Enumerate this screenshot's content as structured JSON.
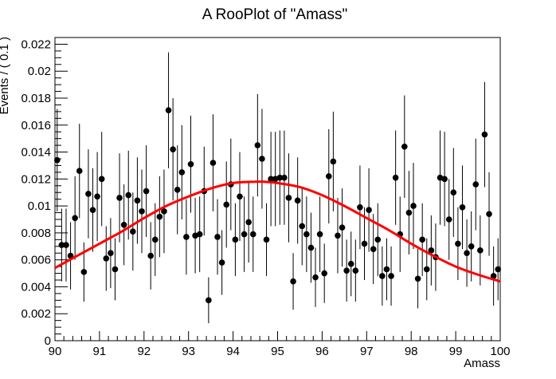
{
  "chart_data": {
    "type": "scatter",
    "title": "A RooPlot of \"Amass\"",
    "xlabel": "Amass",
    "ylabel": "Events / ( 0.1 )",
    "xlim": [
      90,
      100
    ],
    "ylim": [
      0,
      0.0225
    ],
    "grid": false,
    "legend": "none",
    "x_ticks": [
      "90",
      "91",
      "92",
      "93",
      "94",
      "95",
      "96",
      "97",
      "98",
      "99",
      "100"
    ],
    "y_ticks": [
      "0",
      "0.002",
      "0.004",
      "0.006",
      "0.008",
      "0.01",
      "0.012",
      "0.014",
      "0.016",
      "0.018",
      "0.02",
      "0.022"
    ],
    "series": [
      {
        "type": "points-with-errors",
        "color": "#000000",
        "x": [
          90.05,
          90.15,
          90.25,
          90.35,
          90.45,
          90.55,
          90.65,
          90.75,
          90.85,
          90.95,
          91.05,
          91.15,
          91.25,
          91.35,
          91.45,
          91.55,
          91.65,
          91.75,
          91.85,
          91.95,
          92.05,
          92.15,
          92.25,
          92.35,
          92.45,
          92.55,
          92.65,
          92.75,
          92.85,
          92.95,
          93.05,
          93.15,
          93.25,
          93.35,
          93.45,
          93.55,
          93.65,
          93.75,
          93.85,
          93.95,
          94.05,
          94.15,
          94.25,
          94.35,
          94.45,
          94.55,
          94.65,
          94.75,
          94.85,
          94.95,
          95.05,
          95.15,
          95.25,
          95.35,
          95.45,
          95.55,
          95.65,
          95.75,
          95.85,
          95.95,
          96.05,
          96.15,
          96.25,
          96.35,
          96.45,
          96.55,
          96.65,
          96.75,
          96.85,
          96.95,
          97.05,
          97.15,
          97.25,
          97.35,
          97.45,
          97.55,
          97.65,
          97.75,
          97.85,
          97.95,
          98.05,
          98.15,
          98.25,
          98.35,
          98.45,
          98.55,
          98.65,
          98.75,
          98.85,
          98.95,
          99.05,
          99.15,
          99.25,
          99.35,
          99.45,
          99.55,
          99.65,
          99.75,
          99.85,
          99.95
        ],
        "y": [
          0.0134,
          0.0071,
          0.0071,
          0.0063,
          0.0091,
          0.0126,
          0.0051,
          0.0109,
          0.0097,
          0.0107,
          0.012,
          0.0061,
          0.0065,
          0.0053,
          0.0106,
          0.0086,
          0.0108,
          0.0081,
          0.0104,
          0.0096,
          0.0111,
          0.0063,
          0.0075,
          0.0092,
          0.0096,
          0.0171,
          0.0142,
          0.0112,
          0.0125,
          0.0077,
          0.0131,
          0.0078,
          0.0079,
          0.0111,
          0.003,
          0.0132,
          0.0077,
          0.0058,
          0.0101,
          0.0116,
          0.0075,
          0.0107,
          0.0079,
          0.0088,
          0.0079,
          0.0145,
          0.0135,
          0.0075,
          0.012,
          0.012,
          0.0121,
          0.0121,
          0.0106,
          0.0044,
          0.0104,
          0.0085,
          0.0079,
          0.0069,
          0.0047,
          0.0079,
          0.005,
          0.0122,
          0.0133,
          0.0078,
          0.0084,
          0.0052,
          0.0057,
          0.0052,
          0.0099,
          0.0072,
          0.0097,
          0.0068,
          0.0075,
          0.0048,
          0.0053,
          0.0048,
          0.0121,
          0.0079,
          0.0144,
          0.0095,
          0.01,
          0.0046,
          0.0075,
          0.0053,
          0.0067,
          0.0062,
          0.0121,
          0.012,
          0.009,
          0.011,
          0.0072,
          0.0099,
          0.0065,
          0.007,
          0.0116,
          0.0067,
          0.0153,
          0.0094,
          0.0048,
          0.0053
        ],
        "yerr": [
          0.0038,
          0.0027,
          0.0027,
          0.0025,
          0.0031,
          0.0035,
          0.0022,
          0.0033,
          0.0031,
          0.0033,
          0.0035,
          0.0024,
          0.0026,
          0.0023,
          0.0033,
          0.003,
          0.0033,
          0.0029,
          0.0032,
          0.0031,
          0.0034,
          0.0025,
          0.0027,
          0.003,
          0.0031,
          0.0043,
          0.0038,
          0.0033,
          0.0035,
          0.0028,
          0.0036,
          0.0028,
          0.0028,
          0.0033,
          0.0017,
          0.0036,
          0.0028,
          0.0024,
          0.0032,
          0.0034,
          0.0027,
          0.0033,
          0.0028,
          0.003,
          0.0028,
          0.0038,
          0.0037,
          0.0027,
          0.0035,
          0.0035,
          0.0035,
          0.0035,
          0.0033,
          0.0021,
          0.0032,
          0.0029,
          0.0028,
          0.0026,
          0.0022,
          0.0028,
          0.0022,
          0.0035,
          0.0037,
          0.0028,
          0.0029,
          0.0023,
          0.0024,
          0.0023,
          0.0031,
          0.0027,
          0.0031,
          0.0026,
          0.0027,
          0.0022,
          0.0023,
          0.0022,
          0.0035,
          0.0028,
          0.0038,
          0.0031,
          0.0032,
          0.0022,
          0.0027,
          0.0023,
          0.0026,
          0.0025,
          0.0035,
          0.0035,
          0.003,
          0.0033,
          0.0027,
          0.0031,
          0.0025,
          0.0026,
          0.0034,
          0.0026,
          0.0039,
          0.0031,
          0.0022,
          0.0023
        ]
      },
      {
        "type": "curve",
        "color": "#ff0000",
        "x": [
          90,
          90.5,
          91,
          91.5,
          92,
          92.5,
          93,
          93.5,
          94,
          94.5,
          94.7,
          95,
          95.5,
          96,
          96.5,
          97,
          97.5,
          98,
          98.5,
          99,
          99.5,
          100
        ],
        "y": [
          0.0054,
          0.0063,
          0.0072,
          0.0081,
          0.0091,
          0.01,
          0.0107,
          0.0113,
          0.0117,
          0.0118,
          0.0118,
          0.0117,
          0.0114,
          0.0108,
          0.01,
          0.0091,
          0.0082,
          0.0072,
          0.0063,
          0.0055,
          0.0049,
          0.0044
        ]
      }
    ]
  }
}
